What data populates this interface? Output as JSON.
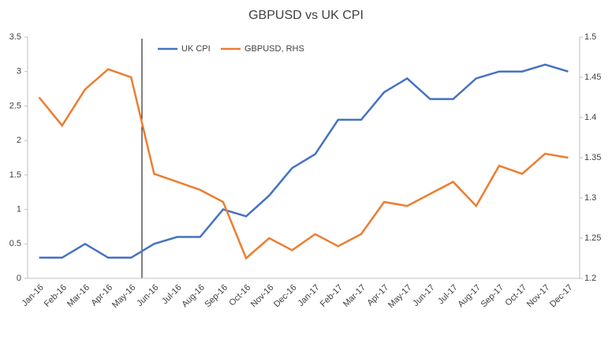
{
  "chart_data": {
    "type": "line",
    "title": "GBPUSD vs UK CPI",
    "categories": [
      "Jan-16",
      "Feb-16",
      "Mar-16",
      "Apr-16",
      "May-16",
      "Jun-16",
      "Jul-16",
      "Aug-16",
      "Sep-16",
      "Oct-16",
      "Nov-16",
      "Dec-16",
      "Jan-17",
      "Feb-17",
      "Mar-17",
      "Apr-17",
      "May-17",
      "Jun-17",
      "Jul-17",
      "Aug-17",
      "Sep-17",
      "Oct-17",
      "Nov-17",
      "Dec-17"
    ],
    "series": [
      {
        "name": "UK CPI",
        "color": "#4472c4",
        "values": [
          0.3,
          0.3,
          0.5,
          0.3,
          0.3,
          0.5,
          0.6,
          0.6,
          1.0,
          0.9,
          1.2,
          1.6,
          1.8,
          2.3,
          2.3,
          2.7,
          2.9,
          2.6,
          2.6,
          2.9,
          3.0,
          3.0,
          3.1,
          3.0
        ]
      },
      {
        "name": "GBPUSD, RHS",
        "color": "#ed7d31",
        "axis": "y2",
        "values": [
          1.425,
          1.39,
          1.435,
          1.46,
          1.45,
          1.33,
          1.32,
          1.31,
          1.295,
          1.225,
          1.25,
          1.235,
          1.255,
          1.24,
          1.255,
          1.295,
          1.29,
          1.305,
          1.32,
          1.29,
          1.34,
          1.33,
          1.355,
          1.35
        ]
      }
    ],
    "ylim": [
      0,
      3.5
    ],
    "yticks": [
      0,
      0.5,
      1,
      1.5,
      2,
      2.5,
      3,
      3.5
    ],
    "y2lim": [
      1.2,
      1.5
    ],
    "y2ticks": [
      1.2,
      1.25,
      1.3,
      1.35,
      1.4,
      1.45,
      1.5
    ]
  }
}
